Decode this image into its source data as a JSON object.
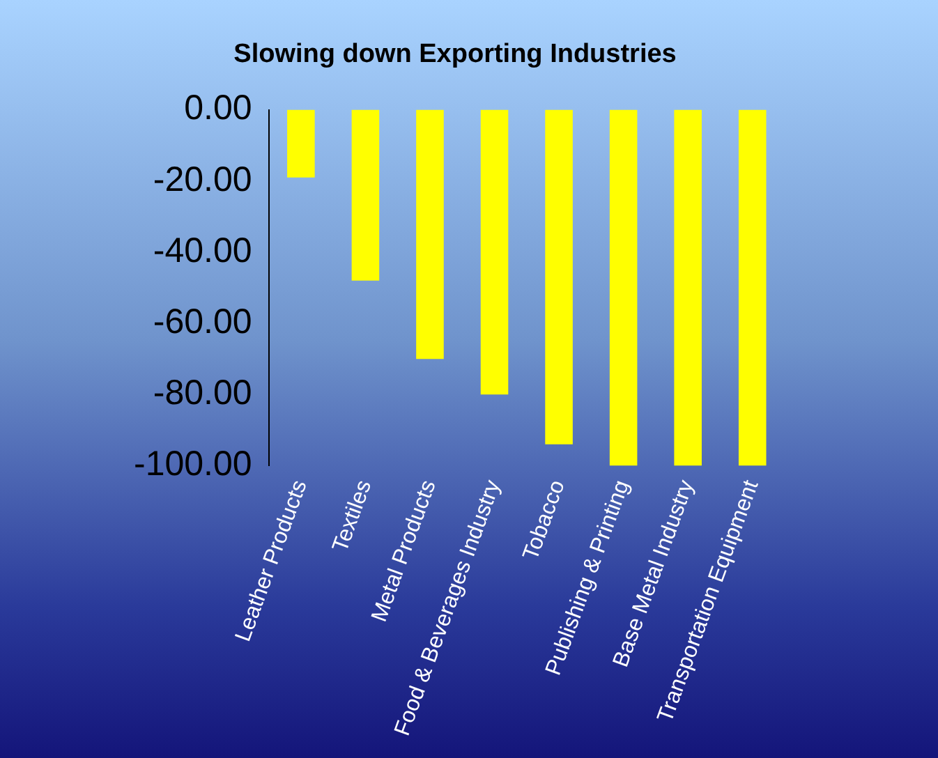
{
  "chart_data": {
    "type": "bar",
    "title": "Slowing down Exporting Industries",
    "categories": [
      "Leather Products",
      "Textiles",
      "Metal Products",
      "Food & Beverages Industry",
      "Tobacco",
      "Publishing & Printing",
      "Base Metal Industry",
      "Transportation Equipment"
    ],
    "values": [
      -19,
      -48,
      -70,
      -80,
      -94,
      -100,
      -100,
      -100
    ],
    "color": "#ffff00",
    "ylim": [
      -100,
      0
    ],
    "yticks": [
      {
        "value": 0,
        "label": "0.00"
      },
      {
        "value": -20,
        "label": "-20.00"
      },
      {
        "value": -40,
        "label": "-40.00"
      },
      {
        "value": -60,
        "label": "-60.00"
      },
      {
        "value": -80,
        "label": "-80.00"
      },
      {
        "value": -100,
        "label": "-100.00"
      }
    ],
    "grid": false,
    "legend": false
  }
}
